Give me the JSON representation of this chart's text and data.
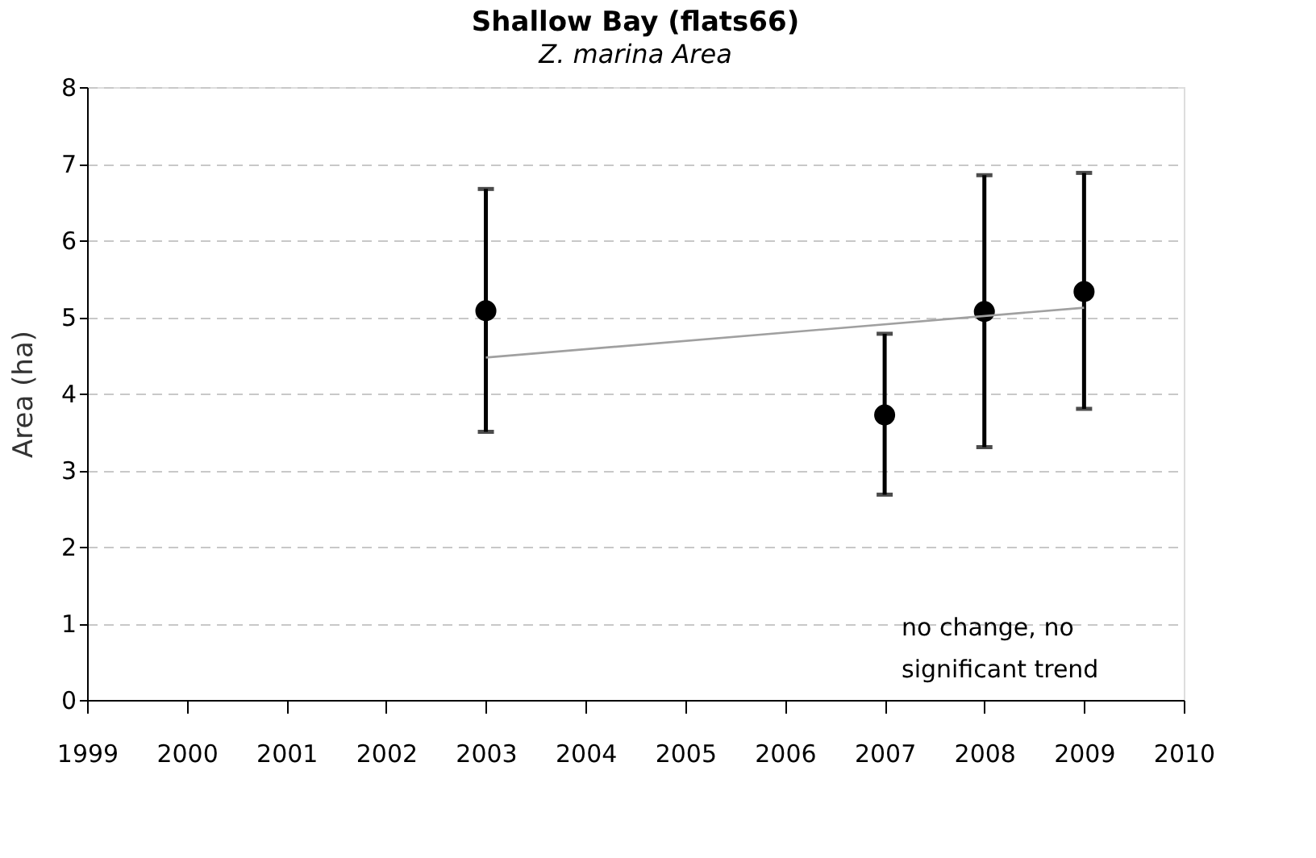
{
  "chart_data": {
    "type": "scatter",
    "title": "Shallow Bay (flats66)",
    "subtitle": "Z. marina Area",
    "ylabel": "Area  (ha)",
    "x": [
      2003,
      2007,
      2008,
      2009
    ],
    "series": [
      {
        "color": "#000000",
        "marker": "circle",
        "values": [
          5.08,
          3.72,
          5.07,
          5.33
        ],
        "errors": [
          [
            3.5,
            6.67
          ],
          [
            2.68,
            4.78
          ],
          [
            3.3,
            6.85
          ],
          [
            3.8,
            6.88
          ]
        ]
      },
      {
        "type": "line",
        "color": "#a0a0a0",
        "x": [
          2003,
          2009
        ],
        "values": [
          4.47,
          5.12
        ]
      }
    ],
    "xlim": [
      1999,
      2010
    ],
    "xticks": [
      1999,
      2000,
      2001,
      2002,
      2003,
      2004,
      2005,
      2006,
      2007,
      2008,
      2009,
      2010
    ],
    "ylim": [
      0,
      8
    ],
    "yticks": [
      0,
      1,
      2,
      3,
      4,
      5,
      6,
      7,
      8
    ],
    "grid": "y",
    "annotations": [
      "no change, no\nsignificant trend"
    ]
  }
}
